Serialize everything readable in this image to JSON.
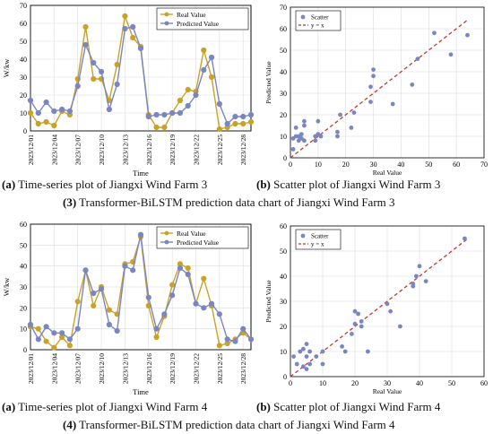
{
  "labels": {
    "real": "Real Value",
    "predicted": "Predicted Value",
    "scatter": "Scatter",
    "yx": "y = x",
    "ts_ylabel": "W/kw",
    "ts_xlabel": "Time",
    "sc_xlabel": "Real Value",
    "sc_ylabel": "Predicted Value"
  },
  "colors": {
    "real": "#c9a227",
    "predicted": "#7a86c2",
    "scatter": "#7a86c2",
    "yx": "#c0392b"
  },
  "captions": {
    "a3_tag": "(a)",
    "a3_text": " Time-series plot of Jiangxi Wind Farm 3",
    "b3_tag": "(b)",
    "b3_text": " Scatter plot of Jiangxi Wind Farm 3",
    "fig3_tag": "(3)",
    "fig3_text": " Transformer-BiLSTM prediction data chart of Jiangxi Wind Farm 3",
    "a4_tag": "(a)",
    "a4_text": " Time-series plot of Jiangxi Wind Farm 4",
    "b4_tag": "(b)",
    "b4_text": " Scatter plot of Jiangxi Wind Farm 4",
    "fig4_tag": "(4)",
    "fig4_text": " Transformer-BiLSTM prediction data chart of Jiangxi Wind Farm 4"
  },
  "chart_data": [
    {
      "type": "line",
      "xlabel": "Time",
      "ylabel": "W/kw",
      "ylim": [
        0,
        70
      ],
      "yticks": [
        0,
        10,
        20,
        30,
        40,
        50,
        60,
        70
      ],
      "xtick_labels": [
        "2023/12/01",
        "2023/12/04",
        "2023/12/07",
        "2023/12/10",
        "2023/12/13",
        "2023/12/16",
        "2023/12/19",
        "2023/12/22",
        "2023/12/25",
        "2023/12/28"
      ],
      "xtick_positions": [
        1,
        4,
        7,
        10,
        13,
        16,
        19,
        22,
        25,
        28
      ],
      "x": [
        1,
        2,
        3,
        4,
        5,
        6,
        7,
        8,
        9,
        10,
        11,
        12,
        13,
        14,
        15,
        16,
        17,
        18,
        19,
        20,
        21,
        22,
        23,
        24,
        25,
        26,
        27,
        28,
        29
      ],
      "grid": true,
      "legend": "top-right",
      "series": [
        {
          "name": "Real Value",
          "values": [
            10,
            4,
            5,
            3,
            11,
            9,
            29,
            58,
            29,
            29,
            17,
            37,
            64,
            52,
            47,
            9,
            2,
            2,
            10,
            17,
            23,
            22,
            45,
            30,
            1,
            2,
            4,
            4,
            5
          ]
        },
        {
          "name": "Predicted Value",
          "values": [
            17,
            10,
            16,
            11,
            12,
            11,
            25,
            48,
            38,
            33,
            12,
            26,
            57,
            58,
            46,
            8,
            9,
            9,
            10,
            10,
            14,
            20,
            34,
            41,
            15,
            4,
            8,
            8,
            9
          ]
        }
      ]
    },
    {
      "type": "scatter",
      "xlabel": "Real Value",
      "ylabel": "Predicted Value",
      "xlim": [
        0,
        70
      ],
      "ylim": [
        0,
        70
      ],
      "xticks": [
        0,
        10,
        20,
        30,
        40,
        50,
        60,
        70
      ],
      "yticks": [
        0,
        10,
        20,
        30,
        40,
        50,
        60,
        70
      ],
      "grid": true,
      "legend": "top-left",
      "series": [
        {
          "name": "Scatter",
          "points": [
            [
              1,
              4
            ],
            [
              1,
              9
            ],
            [
              2,
              10
            ],
            [
              2,
              14
            ],
            [
              3,
              8
            ],
            [
              3,
              10
            ],
            [
              4,
              11
            ],
            [
              4,
              9
            ],
            [
              5,
              15
            ],
            [
              5,
              17
            ],
            [
              5,
              8
            ],
            [
              9,
              8
            ],
            [
              9,
              10
            ],
            [
              10,
              11
            ],
            [
              10,
              17
            ],
            [
              11,
              10
            ],
            [
              17,
              12
            ],
            [
              17,
              10
            ],
            [
              18,
              20
            ],
            [
              22,
              14
            ],
            [
              23,
              21
            ],
            [
              29,
              26
            ],
            [
              29,
              33
            ],
            [
              30,
              38
            ],
            [
              30,
              41
            ],
            [
              37,
              25
            ],
            [
              44,
              34
            ],
            [
              46,
              46
            ],
            [
              52,
              58
            ],
            [
              58,
              48
            ],
            [
              64,
              57
            ]
          ]
        },
        {
          "name": "y = x",
          "line": [
            [
              0,
              0
            ],
            [
              64,
              64
            ]
          ]
        }
      ]
    },
    {
      "type": "line",
      "xlabel": "Time",
      "ylabel": "W/kw",
      "ylim": [
        0,
        60
      ],
      "yticks": [
        0,
        10,
        20,
        30,
        40,
        50,
        60
      ],
      "xtick_labels": [
        "2023/12/01",
        "2023/12/04",
        "2023/12/07",
        "2023/12/10",
        "2023/12/13",
        "2023/12/16",
        "2023/12/19",
        "2023/12/22",
        "2023/12/25",
        "2023/12/28"
      ],
      "xtick_positions": [
        1,
        4,
        7,
        10,
        13,
        16,
        19,
        22,
        25,
        28
      ],
      "x": [
        1,
        2,
        3,
        4,
        5,
        6,
        7,
        8,
        9,
        10,
        11,
        12,
        13,
        14,
        15,
        16,
        17,
        18,
        19,
        20,
        21,
        22,
        23,
        24,
        25,
        26,
        27,
        28,
        29
      ],
      "grid": true,
      "legend": "top-right",
      "series": [
        {
          "name": "Real Value",
          "values": [
            11,
            10,
            4,
            1,
            6,
            2,
            23,
            38,
            21,
            30,
            19,
            17,
            41,
            42,
            54,
            21,
            6,
            16,
            31,
            41,
            39,
            22,
            34,
            21,
            2,
            3,
            5,
            8,
            5
          ]
        },
        {
          "name": "Predicted Value",
          "values": [
            12,
            5,
            11,
            8,
            8,
            5,
            10,
            38,
            27,
            29,
            12,
            9,
            40,
            38,
            55,
            25,
            10,
            17,
            26,
            39,
            36,
            22,
            20,
            22,
            17,
            5,
            4,
            10,
            5
          ]
        }
      ]
    },
    {
      "type": "scatter",
      "xlabel": "Real Value",
      "ylabel": "Predicted Value",
      "xlim": [
        0,
        60
      ],
      "ylim": [
        0,
        60
      ],
      "xticks": [
        0,
        10,
        20,
        30,
        40,
        50,
        60
      ],
      "yticks": [
        0,
        10,
        20,
        30,
        40,
        50,
        60
      ],
      "grid": true,
      "legend": "top-left",
      "series": [
        {
          "name": "Scatter",
          "points": [
            [
              1,
              8
            ],
            [
              2,
              5
            ],
            [
              3,
              10
            ],
            [
              4,
              11
            ],
            [
              4,
              4
            ],
            [
              5,
              8
            ],
            [
              5,
              13
            ],
            [
              5,
              3
            ],
            [
              6,
              10
            ],
            [
              6,
              5
            ],
            [
              8,
              8
            ],
            [
              10,
              5
            ],
            [
              10,
              10
            ],
            [
              16,
              12
            ],
            [
              17,
              10
            ],
            [
              19,
              17
            ],
            [
              20,
              21
            ],
            [
              20,
              26
            ],
            [
              21,
              25
            ],
            [
              22,
              22
            ],
            [
              22,
              20
            ],
            [
              24,
              10
            ],
            [
              30,
              29
            ],
            [
              31,
              26
            ],
            [
              34,
              20
            ],
            [
              38,
              36
            ],
            [
              38,
              37
            ],
            [
              39,
              40
            ],
            [
              40,
              44
            ],
            [
              42,
              38
            ],
            [
              54,
              55
            ]
          ]
        },
        {
          "name": "y = x",
          "line": [
            [
              0,
              0
            ],
            [
              55,
              55
            ]
          ]
        }
      ]
    }
  ]
}
